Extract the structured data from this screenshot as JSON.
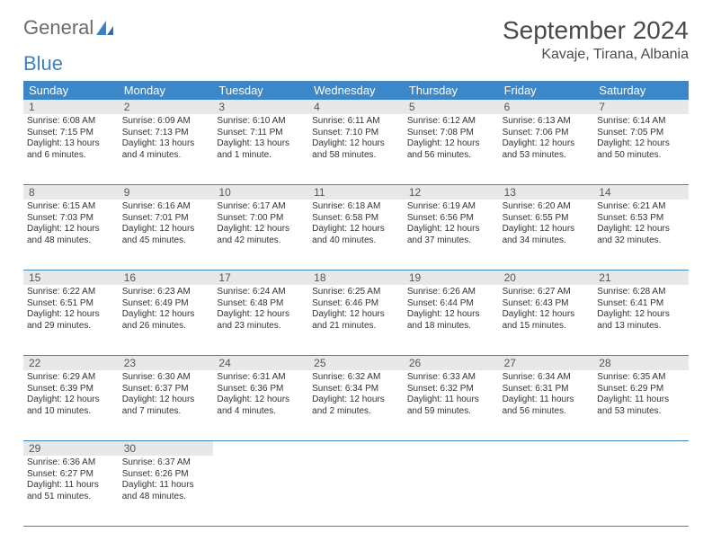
{
  "logo": {
    "text1": "General",
    "text2": "Blue"
  },
  "title": "September 2024",
  "location": "Kavaje, Tirana, Albania",
  "colors": {
    "header_bg": "#3b87c8",
    "header_text": "#ffffff",
    "daynum_bg": "#e8e8e8",
    "border": "#3b87c8",
    "logo_gray": "#6b6b6b",
    "logo_blue": "#3b82c4"
  },
  "weekdays": [
    "Sunday",
    "Monday",
    "Tuesday",
    "Wednesday",
    "Thursday",
    "Friday",
    "Saturday"
  ],
  "weeks": [
    [
      {
        "n": "1",
        "sr": "Sunrise: 6:08 AM",
        "ss": "Sunset: 7:15 PM",
        "dl": "Daylight: 13 hours and 6 minutes."
      },
      {
        "n": "2",
        "sr": "Sunrise: 6:09 AM",
        "ss": "Sunset: 7:13 PM",
        "dl": "Daylight: 13 hours and 4 minutes."
      },
      {
        "n": "3",
        "sr": "Sunrise: 6:10 AM",
        "ss": "Sunset: 7:11 PM",
        "dl": "Daylight: 13 hours and 1 minute."
      },
      {
        "n": "4",
        "sr": "Sunrise: 6:11 AM",
        "ss": "Sunset: 7:10 PM",
        "dl": "Daylight: 12 hours and 58 minutes."
      },
      {
        "n": "5",
        "sr": "Sunrise: 6:12 AM",
        "ss": "Sunset: 7:08 PM",
        "dl": "Daylight: 12 hours and 56 minutes."
      },
      {
        "n": "6",
        "sr": "Sunrise: 6:13 AM",
        "ss": "Sunset: 7:06 PM",
        "dl": "Daylight: 12 hours and 53 minutes."
      },
      {
        "n": "7",
        "sr": "Sunrise: 6:14 AM",
        "ss": "Sunset: 7:05 PM",
        "dl": "Daylight: 12 hours and 50 minutes."
      }
    ],
    [
      {
        "n": "8",
        "sr": "Sunrise: 6:15 AM",
        "ss": "Sunset: 7:03 PM",
        "dl": "Daylight: 12 hours and 48 minutes."
      },
      {
        "n": "9",
        "sr": "Sunrise: 6:16 AM",
        "ss": "Sunset: 7:01 PM",
        "dl": "Daylight: 12 hours and 45 minutes."
      },
      {
        "n": "10",
        "sr": "Sunrise: 6:17 AM",
        "ss": "Sunset: 7:00 PM",
        "dl": "Daylight: 12 hours and 42 minutes."
      },
      {
        "n": "11",
        "sr": "Sunrise: 6:18 AM",
        "ss": "Sunset: 6:58 PM",
        "dl": "Daylight: 12 hours and 40 minutes."
      },
      {
        "n": "12",
        "sr": "Sunrise: 6:19 AM",
        "ss": "Sunset: 6:56 PM",
        "dl": "Daylight: 12 hours and 37 minutes."
      },
      {
        "n": "13",
        "sr": "Sunrise: 6:20 AM",
        "ss": "Sunset: 6:55 PM",
        "dl": "Daylight: 12 hours and 34 minutes."
      },
      {
        "n": "14",
        "sr": "Sunrise: 6:21 AM",
        "ss": "Sunset: 6:53 PM",
        "dl": "Daylight: 12 hours and 32 minutes."
      }
    ],
    [
      {
        "n": "15",
        "sr": "Sunrise: 6:22 AM",
        "ss": "Sunset: 6:51 PM",
        "dl": "Daylight: 12 hours and 29 minutes."
      },
      {
        "n": "16",
        "sr": "Sunrise: 6:23 AM",
        "ss": "Sunset: 6:49 PM",
        "dl": "Daylight: 12 hours and 26 minutes."
      },
      {
        "n": "17",
        "sr": "Sunrise: 6:24 AM",
        "ss": "Sunset: 6:48 PM",
        "dl": "Daylight: 12 hours and 23 minutes."
      },
      {
        "n": "18",
        "sr": "Sunrise: 6:25 AM",
        "ss": "Sunset: 6:46 PM",
        "dl": "Daylight: 12 hours and 21 minutes."
      },
      {
        "n": "19",
        "sr": "Sunrise: 6:26 AM",
        "ss": "Sunset: 6:44 PM",
        "dl": "Daylight: 12 hours and 18 minutes."
      },
      {
        "n": "20",
        "sr": "Sunrise: 6:27 AM",
        "ss": "Sunset: 6:43 PM",
        "dl": "Daylight: 12 hours and 15 minutes."
      },
      {
        "n": "21",
        "sr": "Sunrise: 6:28 AM",
        "ss": "Sunset: 6:41 PM",
        "dl": "Daylight: 12 hours and 13 minutes."
      }
    ],
    [
      {
        "n": "22",
        "sr": "Sunrise: 6:29 AM",
        "ss": "Sunset: 6:39 PM",
        "dl": "Daylight: 12 hours and 10 minutes."
      },
      {
        "n": "23",
        "sr": "Sunrise: 6:30 AM",
        "ss": "Sunset: 6:37 PM",
        "dl": "Daylight: 12 hours and 7 minutes."
      },
      {
        "n": "24",
        "sr": "Sunrise: 6:31 AM",
        "ss": "Sunset: 6:36 PM",
        "dl": "Daylight: 12 hours and 4 minutes."
      },
      {
        "n": "25",
        "sr": "Sunrise: 6:32 AM",
        "ss": "Sunset: 6:34 PM",
        "dl": "Daylight: 12 hours and 2 minutes."
      },
      {
        "n": "26",
        "sr": "Sunrise: 6:33 AM",
        "ss": "Sunset: 6:32 PM",
        "dl": "Daylight: 11 hours and 59 minutes."
      },
      {
        "n": "27",
        "sr": "Sunrise: 6:34 AM",
        "ss": "Sunset: 6:31 PM",
        "dl": "Daylight: 11 hours and 56 minutes."
      },
      {
        "n": "28",
        "sr": "Sunrise: 6:35 AM",
        "ss": "Sunset: 6:29 PM",
        "dl": "Daylight: 11 hours and 53 minutes."
      }
    ],
    [
      {
        "n": "29",
        "sr": "Sunrise: 6:36 AM",
        "ss": "Sunset: 6:27 PM",
        "dl": "Daylight: 11 hours and 51 minutes."
      },
      {
        "n": "30",
        "sr": "Sunrise: 6:37 AM",
        "ss": "Sunset: 6:26 PM",
        "dl": "Daylight: 11 hours and 48 minutes."
      },
      null,
      null,
      null,
      null,
      null
    ]
  ]
}
